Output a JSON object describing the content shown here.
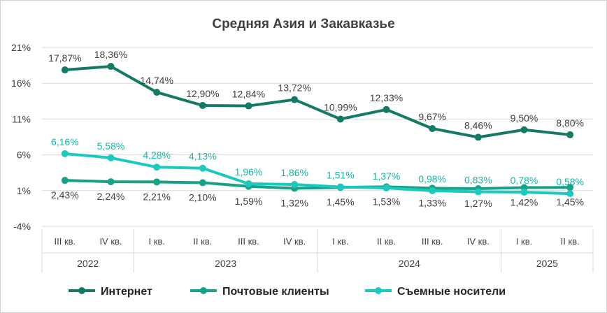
{
  "chart_data": {
    "type": "line",
    "title": "Средняя Азия и Закавказье",
    "xlabel": "",
    "ylabel": "",
    "ylim": [
      -4,
      21
    ],
    "yticks": [
      "21%",
      "16%",
      "11%",
      "6%",
      "1%",
      "-4%"
    ],
    "ytick_values": [
      21,
      16,
      11,
      6,
      1,
      -4
    ],
    "categories": [
      "III кв.",
      "IV кв.",
      "I кв.",
      "II кв.",
      "III кв.",
      "IV кв.",
      "I кв.",
      "II кв.",
      "III кв.",
      "IV кв.",
      "I кв.",
      "II кв."
    ],
    "year_groups": [
      {
        "label": "2022",
        "count": 2
      },
      {
        "label": "2023",
        "count": 4
      },
      {
        "label": "2024",
        "count": 4
      },
      {
        "label": "2025",
        "count": 2
      }
    ],
    "grid": true,
    "legend_position": "bottom",
    "series": [
      {
        "name": "Интернет",
        "color": "#147a63",
        "label_color": "#404040",
        "values": [
          17.87,
          18.36,
          14.74,
          12.9,
          12.84,
          13.72,
          10.99,
          12.33,
          9.67,
          8.46,
          9.5,
          8.8
        ],
        "labels": [
          "17,87%",
          "18,36%",
          "14,74%",
          "12,90%",
          "12,84%",
          "13,72%",
          "10,99%",
          "12,33%",
          "9,67%",
          "8,46%",
          "9,50%",
          "8,80%"
        ],
        "label_side": "above"
      },
      {
        "name": "Почтовые клиенты",
        "color": "#17a187",
        "label_color": "#404040",
        "values": [
          2.43,
          2.24,
          2.21,
          2.1,
          1.59,
          1.32,
          1.45,
          1.53,
          1.33,
          1.27,
          1.42,
          1.45
        ],
        "labels": [
          "2,43%",
          "2,24%",
          "2,21%",
          "2,10%",
          "1,59%",
          "1,32%",
          "1,45%",
          "1,53%",
          "1,33%",
          "1,27%",
          "1,42%",
          "1,45%"
        ],
        "label_side": "below"
      },
      {
        "name": "Съемные носители",
        "color": "#1cc9bf",
        "label_color": "#17b6a4",
        "values": [
          6.16,
          5.58,
          4.28,
          4.13,
          1.96,
          1.86,
          1.51,
          1.37,
          0.98,
          0.83,
          0.78,
          0.58
        ],
        "labels": [
          "6,16%",
          "5,58%",
          "4,28%",
          "4,13%",
          "1,96%",
          "1,86%",
          "1,51%",
          "1,37%",
          "0,98%",
          "0,83%",
          "0,78%",
          "0,58%"
        ],
        "label_side": "above"
      }
    ]
  }
}
